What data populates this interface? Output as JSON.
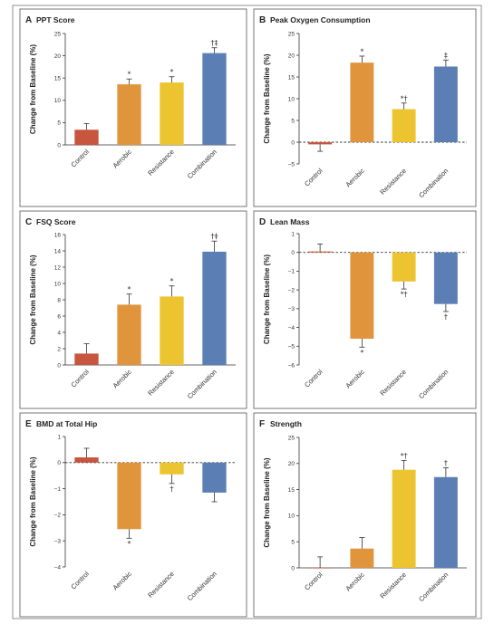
{
  "colors": {
    "Control": "#c8553d",
    "Aerobic": "#e0953c",
    "Resistance": "#ecc42f",
    "Combination": "#5b7fb4"
  },
  "chart_data": [
    {
      "type": "bar",
      "letter": "A",
      "title": "PPT Score",
      "ylabel": "Change from Baseline (%)",
      "categories": [
        "Control",
        "Aerobic",
        "Resistance",
        "Combination"
      ],
      "values": [
        3.4,
        13.6,
        14.0,
        20.6
      ],
      "errors": [
        1.4,
        1.2,
        1.3,
        1.2
      ],
      "annotations": [
        "",
        "*",
        "*",
        "†‡"
      ],
      "ylim": [
        0,
        25
      ],
      "yticks": [
        0,
        5,
        10,
        15,
        20,
        25
      ],
      "zero_line": false
    },
    {
      "type": "bar",
      "letter": "B",
      "title": "Peak Oxygen Consumption",
      "ylabel": "Change from Baseline (%)",
      "categories": [
        "Control",
        "Aerobic",
        "Resistance",
        "Combination"
      ],
      "values": [
        -0.5,
        18.3,
        7.6,
        17.4
      ],
      "errors": [
        1.6,
        1.5,
        1.4,
        1.5
      ],
      "annotations": [
        "",
        "*",
        "*†",
        "‡"
      ],
      "ylim": [
        -5,
        25
      ],
      "yticks": [
        -5,
        0,
        5,
        10,
        15,
        20,
        25
      ],
      "zero_line": true
    },
    {
      "type": "bar",
      "letter": "C",
      "title": "FSQ Score",
      "ylabel": "Change from Baseline (%)",
      "categories": [
        "Control",
        "Aerobic",
        "Resistance",
        "Combination"
      ],
      "values": [
        1.4,
        7.4,
        8.4,
        13.9
      ],
      "errors": [
        1.2,
        1.3,
        1.3,
        1.3
      ],
      "annotations": [
        "",
        "*",
        "*",
        "†‡"
      ],
      "ylim": [
        0,
        16
      ],
      "yticks": [
        0,
        2,
        4,
        6,
        8,
        10,
        12,
        14,
        16
      ],
      "zero_line": false
    },
    {
      "type": "bar",
      "letter": "D",
      "title": "Lean Mass",
      "ylabel": "Change from Baseline (%)",
      "categories": [
        "Control",
        "Aerobic",
        "Resistance",
        "Combination"
      ],
      "values": [
        0.05,
        -4.6,
        -1.55,
        -2.75
      ],
      "errors": [
        0.4,
        0.45,
        0.4,
        0.4
      ],
      "annotations": [
        "",
        "*",
        "*†",
        "†"
      ],
      "ylim": [
        -6,
        1
      ],
      "yticks": [
        -6,
        -5,
        -4,
        -3,
        -2,
        -1,
        0,
        1
      ],
      "zero_line": true
    },
    {
      "type": "bar",
      "letter": "E",
      "title": "BMD at Total Hip",
      "ylabel": "Change from Baseline (%)",
      "categories": [
        "Control",
        "Aerobic",
        "Resistance",
        "Combination"
      ],
      "values": [
        0.2,
        -2.55,
        -0.45,
        -1.15
      ],
      "errors": [
        0.35,
        0.35,
        0.35,
        0.35
      ],
      "annotations": [
        "",
        "*",
        "†",
        ""
      ],
      "ylim": [
        -4,
        1
      ],
      "yticks": [
        -4,
        -3,
        -2,
        -1,
        0,
        1
      ],
      "zero_line": true
    },
    {
      "type": "bar",
      "letter": "F",
      "title": "Strength",
      "ylabel": "Change from Baseline (%)",
      "categories": [
        "Control",
        "Aerobic",
        "Resistance",
        "Combination"
      ],
      "values": [
        0.0,
        3.7,
        18.8,
        17.4
      ],
      "errors": [
        2.1,
        2.1,
        1.8,
        1.8
      ],
      "annotations": [
        "",
        "",
        "*†",
        "†"
      ],
      "ylim": [
        0,
        25
      ],
      "yticks": [
        0,
        5,
        10,
        15,
        20,
        25
      ],
      "zero_line": false
    }
  ]
}
